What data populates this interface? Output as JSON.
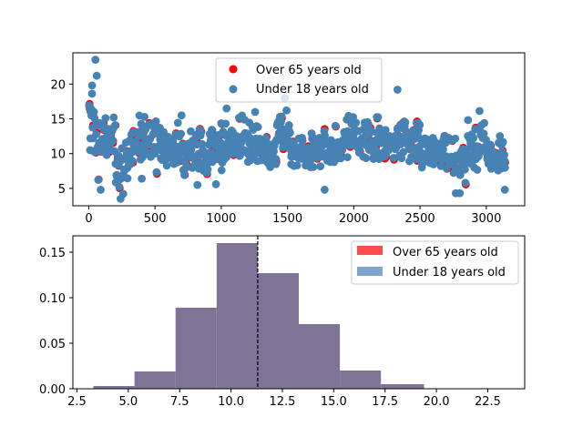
{
  "colors": {
    "over65": "#ff0000",
    "under18": "#4682b4",
    "over65_hist": "#ff4d4d",
    "under18_hist": "#7ea6cc",
    "overlap_hist": "#7f7396",
    "mean_line": "#000000"
  },
  "chart_data": [
    {
      "type": "scatter",
      "legend_position": "top-center",
      "xlim": [
        -120,
        3290
      ],
      "ylim": [
        2.5,
        24.5
      ],
      "xticks": [
        0,
        500,
        1000,
        1500,
        2000,
        2500,
        3000
      ],
      "yticks": [
        5,
        10,
        15,
        20
      ],
      "legend": [
        "Over 65 years old",
        "Under 18 years old"
      ],
      "n_points": 3142,
      "series": [
        {
          "name": "Over 65 years old",
          "x_range": [
            0,
            3141
          ],
          "y_range": [
            4.5,
            19.5
          ],
          "partially_hidden": true
        },
        {
          "name": "Under 18 years old",
          "x_range": [
            0,
            3141
          ],
          "y_range": [
            3.5,
            23.5
          ]
        }
      ],
      "outliers": [
        {
          "x": 50,
          "y": 23.5
        },
        {
          "x": 60,
          "y": 21.2
        },
        {
          "x": 25,
          "y": 19.8
        },
        {
          "x": 10,
          "y": 10.5
        },
        {
          "x": 240,
          "y": 3.5
        },
        {
          "x": 260,
          "y": 4.2
        },
        {
          "x": 90,
          "y": 4.8
        },
        {
          "x": 3140,
          "y": 4.8
        },
        {
          "x": 2800,
          "y": 4.3
        },
        {
          "x": 2770,
          "y": 4.3
        },
        {
          "x": 1780,
          "y": 4.8
        },
        {
          "x": 960,
          "y": 5.6
        },
        {
          "x": 820,
          "y": 5.5
        },
        {
          "x": 400,
          "y": 6.4
        },
        {
          "x": 2330,
          "y": 19.2
        },
        {
          "x": 1480,
          "y": 18.0
        },
        {
          "x": 1040,
          "y": 16.5
        },
        {
          "x": 700,
          "y": 15.5
        }
      ],
      "segments": [
        {
          "x": [
            0,
            30
          ],
          "lo": 11,
          "hi": 19.5
        },
        {
          "x": [
            30,
            120
          ],
          "lo": 6,
          "hi": 18
        },
        {
          "x": [
            120,
            200
          ],
          "lo": 8.5,
          "hi": 16
        },
        {
          "x": [
            200,
            320
          ],
          "lo": 4.5,
          "hi": 12.5
        },
        {
          "x": [
            320,
            520
          ],
          "lo": 7,
          "hi": 16.5
        },
        {
          "x": [
            520,
            700
          ],
          "lo": 7,
          "hi": 14.5
        },
        {
          "x": [
            700,
            900
          ],
          "lo": 6.5,
          "hi": 14
        },
        {
          "x": [
            900,
            1100
          ],
          "lo": 7.5,
          "hi": 15.5
        },
        {
          "x": [
            1100,
            1300
          ],
          "lo": 8,
          "hi": 16
        },
        {
          "x": [
            1300,
            1420
          ],
          "lo": 7,
          "hi": 13.5
        },
        {
          "x": [
            1420,
            1520
          ],
          "lo": 8.5,
          "hi": 17.5
        },
        {
          "x": [
            1520,
            1700
          ],
          "lo": 7,
          "hi": 13.5
        },
        {
          "x": [
            1700,
            1900
          ],
          "lo": 7.5,
          "hi": 14.5
        },
        {
          "x": [
            1900,
            2100
          ],
          "lo": 8.5,
          "hi": 15.5
        },
        {
          "x": [
            2100,
            2300
          ],
          "lo": 8,
          "hi": 15.5
        },
        {
          "x": [
            2300,
            2500
          ],
          "lo": 7.5,
          "hi": 16.5
        },
        {
          "x": [
            2500,
            2700
          ],
          "lo": 8,
          "hi": 13.5
        },
        {
          "x": [
            2700,
            2850
          ],
          "lo": 5.5,
          "hi": 13.5
        },
        {
          "x": [
            2850,
            3000
          ],
          "lo": 6.5,
          "hi": 16.5
        },
        {
          "x": [
            3000,
            3141
          ],
          "lo": 6,
          "hi": 14
        }
      ]
    },
    {
      "type": "histogram",
      "legend_position": "top-right",
      "xlim": [
        2.3,
        24.3
      ],
      "ylim": [
        0,
        0.168
      ],
      "xticks": [
        2.5,
        5.0,
        7.5,
        10.0,
        12.5,
        15.0,
        17.5,
        20.0,
        22.5
      ],
      "xtick_labels": [
        "2.5",
        "5.0",
        "7.5",
        "10.0",
        "12.5",
        "15.0",
        "17.5",
        "20.0",
        "22.5"
      ],
      "yticks": [
        0.0,
        0.05,
        0.1,
        0.15
      ],
      "ytick_labels": [
        "0.00",
        "0.05",
        "0.10",
        "0.15"
      ],
      "bins": [
        3.3,
        5.3,
        7.3,
        9.3,
        11.3,
        13.3,
        15.3,
        17.3,
        19.4,
        21.4,
        23.5
      ],
      "series": [
        {
          "name": "Over 65 years old",
          "density": [
            0.003,
            0.019,
            0.089,
            0.16,
            0.127,
            0.071,
            0.02,
            0.005,
            0.0,
            0.0
          ]
        },
        {
          "name": "Under 18 years old",
          "density": [
            0.003,
            0.019,
            0.089,
            0.16,
            0.127,
            0.071,
            0.02,
            0.005,
            0.0005,
            0.0005
          ]
        }
      ],
      "mean_line": 11.3,
      "legend": [
        "Over 65 years old",
        "Under 18 years old"
      ]
    }
  ]
}
